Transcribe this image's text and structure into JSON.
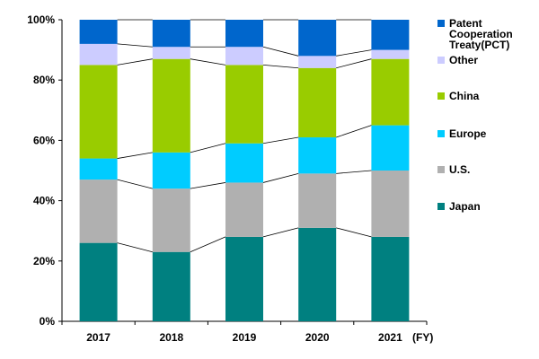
{
  "chart_data": {
    "type": "bar",
    "stacked": true,
    "categories": [
      "2017",
      "2018",
      "2019",
      "2020",
      "2021"
    ],
    "x_unit": "(FY)",
    "ylim": [
      0,
      100
    ],
    "y_ticks": [
      "0%",
      "20%",
      "40%",
      "60%",
      "80%",
      "100%"
    ],
    "grid": false,
    "connector_lines": true,
    "legend_position": "right",
    "series": [
      {
        "name": "Japan",
        "color": "#008080",
        "values": [
          26,
          23,
          28,
          31,
          28
        ]
      },
      {
        "name": "U.S.",
        "color": "#b0b0b0",
        "values": [
          21,
          21,
          18,
          18,
          22
        ]
      },
      {
        "name": "Europe",
        "color": "#00ccff",
        "values": [
          7,
          12,
          13,
          12,
          15
        ]
      },
      {
        "name": "China",
        "color": "#99cc00",
        "values": [
          31,
          31,
          26,
          23,
          22
        ]
      },
      {
        "name": "Other",
        "color": "#ccccff",
        "values": [
          7,
          4,
          6,
          4,
          3
        ]
      },
      {
        "name": "Patent Cooperation Treaty(PCT)",
        "color": "#0066cc",
        "values": [
          8,
          9,
          9,
          12,
          10
        ]
      }
    ],
    "legend": [
      {
        "lines": [
          "Patent",
          "Cooperation",
          "Treaty(PCT)"
        ],
        "color": "#0066cc"
      },
      {
        "lines": [
          "Other"
        ],
        "color": "#ccccff"
      },
      {
        "lines": [
          "China"
        ],
        "color": "#99cc00"
      },
      {
        "lines": [
          "Europe"
        ],
        "color": "#00ccff"
      },
      {
        "lines": [
          "U.S."
        ],
        "color": "#b0b0b0"
      },
      {
        "lines": [
          "Japan"
        ],
        "color": "#008080"
      }
    ]
  }
}
